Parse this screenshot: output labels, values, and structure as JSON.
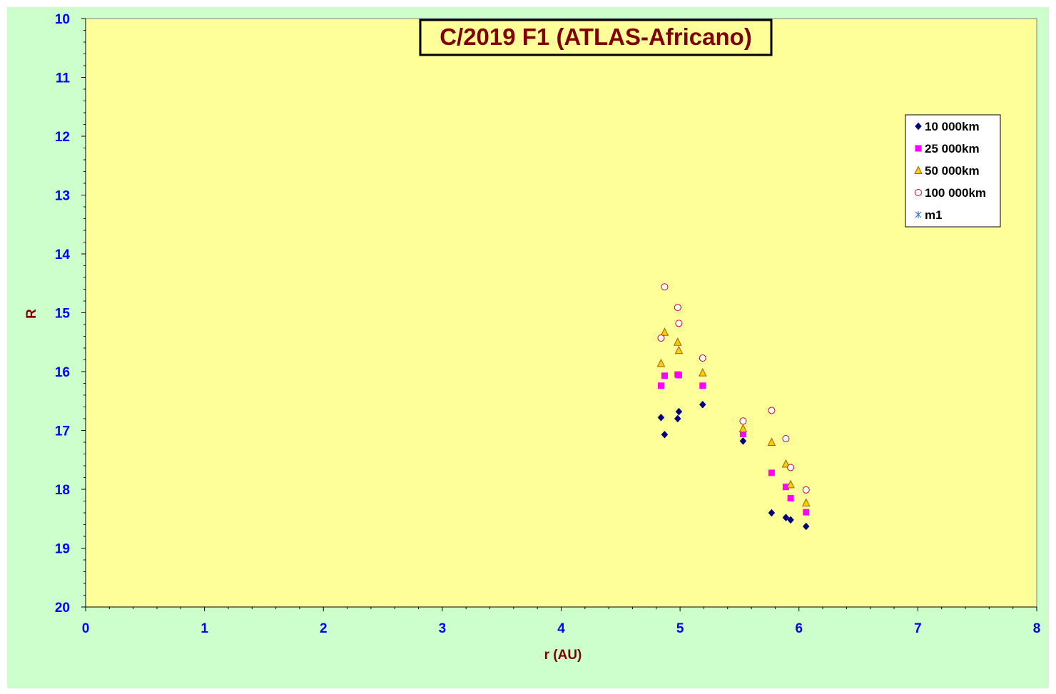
{
  "chart_data": {
    "type": "scatter",
    "title": "C/2019 F1 (ATLAS-Africano)",
    "xlabel": "r (AU)",
    "ylabel": "R",
    "xlim": [
      0,
      8
    ],
    "ylim": [
      10,
      20
    ],
    "y_inverted": true,
    "x_ticks": [
      "0",
      "1",
      "2",
      "3",
      "4",
      "5",
      "6",
      "7",
      "8"
    ],
    "y_ticks": [
      "10",
      "11",
      "12",
      "13",
      "14",
      "15",
      "16",
      "17",
      "18",
      "19",
      "20"
    ],
    "grid": false,
    "legend_position": "top-right",
    "colors": {
      "outer_background": "#ccffcc",
      "plot_background": "#ffff99",
      "tick_labels": "#0000ff",
      "axis_titles": "#800000",
      "title_text": "#800000"
    },
    "series": [
      {
        "name": "10 000km",
        "marker": "diamond",
        "color": "#000080",
        "x": [
          4.84,
          4.87,
          4.98,
          4.99,
          5.19,
          5.53,
          5.77,
          5.89,
          5.93,
          6.06
        ],
        "y": [
          16.78,
          17.07,
          16.8,
          16.68,
          16.56,
          17.18,
          18.4,
          18.48,
          18.52,
          18.63
        ]
      },
      {
        "name": "25 000km",
        "marker": "square",
        "color": "#ff00ff",
        "x": [
          4.84,
          4.87,
          4.98,
          4.99,
          5.19,
          5.53,
          5.77,
          5.89,
          5.93,
          6.06
        ],
        "y": [
          16.24,
          16.07,
          16.05,
          16.06,
          16.24,
          17.06,
          17.72,
          17.96,
          18.15,
          18.39
        ]
      },
      {
        "name": "50 000km",
        "marker": "triangle",
        "color": "#ffcc00",
        "x": [
          4.84,
          4.87,
          4.98,
          4.99,
          5.19,
          5.53,
          5.77,
          5.89,
          5.93,
          6.06
        ],
        "y": [
          15.86,
          15.33,
          15.5,
          15.64,
          16.02,
          16.97,
          17.2,
          17.57,
          17.92,
          18.23
        ]
      },
      {
        "name": "100 000km",
        "marker": "circle",
        "color": "#ffffff",
        "x": [
          4.84,
          4.87,
          4.98,
          4.99,
          5.19,
          5.53,
          5.77,
          5.89,
          5.93,
          6.06
        ],
        "y": [
          15.43,
          14.56,
          14.91,
          15.18,
          15.77,
          16.84,
          16.66,
          17.14,
          17.63,
          18.01
        ]
      },
      {
        "name": "m1",
        "marker": "star",
        "color": "#3366cc",
        "x": [],
        "y": []
      }
    ]
  }
}
